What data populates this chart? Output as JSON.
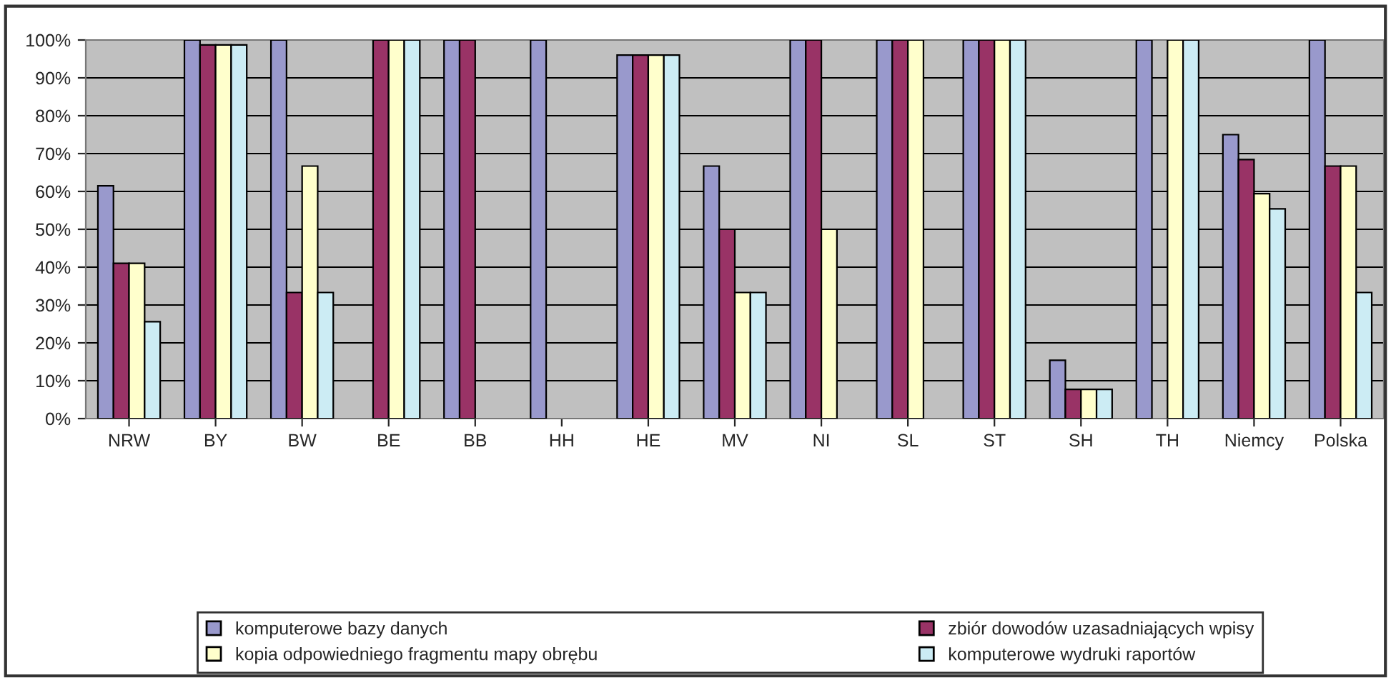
{
  "chart_data": {
    "type": "bar",
    "categories": [
      "NRW",
      "BY",
      "BW",
      "BE",
      "BB",
      "HH",
      "HE",
      "MV",
      "NI",
      "SL",
      "ST",
      "SH",
      "TH",
      "Niemcy",
      "Polska"
    ],
    "series": [
      {
        "name": "komputerowe bazy danych",
        "color": "#9999cc",
        "values": [
          61.5,
          100,
          100,
          0,
          100,
          100,
          96,
          66.7,
          100,
          100,
          100,
          15.4,
          100,
          75,
          100
        ]
      },
      {
        "name": "zbiór dowodów uzasadniających wpisy",
        "color": "#993366",
        "values": [
          41,
          98.7,
          33.3,
          100,
          100,
          0,
          96,
          50,
          100,
          100,
          100,
          7.7,
          0,
          68.4,
          66.7
        ]
      },
      {
        "name": "kopia odpowiedniego fragmentu mapy obrębu",
        "color": "#ffffcc",
        "values": [
          41,
          98.7,
          66.7,
          100,
          0,
          0,
          96,
          33.3,
          50,
          100,
          100,
          7.7,
          100,
          59.4,
          66.7
        ]
      },
      {
        "name": "komputerowe wydruki raportów",
        "color": "#ccecf4",
        "values": [
          25.6,
          98.7,
          33.3,
          100,
          0,
          0,
          96,
          33.3,
          0,
          0,
          100,
          7.7,
          100,
          55.4,
          33.3
        ]
      }
    ],
    "ylim": [
      0,
      100
    ],
    "yticks": [
      {
        "value": 0,
        "label": "0%"
      },
      {
        "value": 10,
        "label": "10%"
      },
      {
        "value": 20,
        "label": "20%"
      },
      {
        "value": 30,
        "label": "30%"
      },
      {
        "value": 40,
        "label": "40%"
      },
      {
        "value": 50,
        "label": "50%"
      },
      {
        "value": 60,
        "label": "60%"
      },
      {
        "value": 70,
        "label": "70%"
      },
      {
        "value": 80,
        "label": "80%"
      },
      {
        "value": 90,
        "label": "90%"
      },
      {
        "value": 100,
        "label": "100%"
      }
    ],
    "grid": "y",
    "legend": "bottom"
  }
}
